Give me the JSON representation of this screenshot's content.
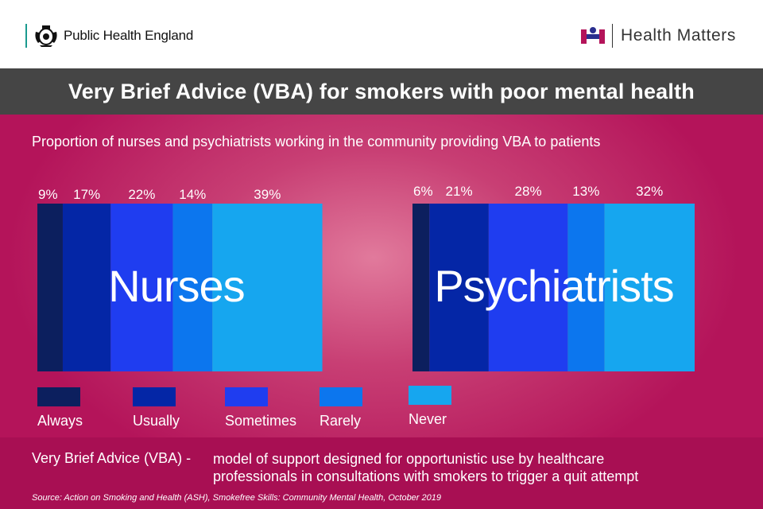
{
  "header": {
    "org": "Public Health England",
    "brand": "Health Matters"
  },
  "title": "Very Brief Advice (VBA) for smokers with poor mental health",
  "subtitle": "Proportion of nurses and psychiatrists working in the community providing VBA to patients",
  "colors": {
    "Always": "#0c1f5e",
    "Usually": "#0426a6",
    "Sometimes": "#1f3df0",
    "Rarely": "#0c76ee",
    "Never": "#16a6ef",
    "background": "#c0286a"
  },
  "chart_data": {
    "type": "bar",
    "orientation": "stacked-horizontal",
    "categories": [
      "Always",
      "Usually",
      "Sometimes",
      "Rarely",
      "Never"
    ],
    "groups": [
      {
        "name": "Nurses",
        "values": [
          9,
          17,
          22,
          14,
          39
        ],
        "labels": [
          "9%",
          "17%",
          "22%",
          "14%",
          "39%"
        ]
      },
      {
        "name": "Psychiatrists",
        "values": [
          6,
          21,
          28,
          13,
          32
        ],
        "labels": [
          "6%",
          "21%",
          "28%",
          "13%",
          "32%"
        ]
      }
    ],
    "legend": [
      "Always",
      "Usually",
      "Sometimes",
      "Rarely",
      "Never"
    ],
    "legend_position": "bottom-left",
    "grid": false
  },
  "footer": {
    "term": "Very Brief Advice (VBA) -",
    "definition_line1": "model of support designed for opportunistic use by healthcare",
    "definition_line2": "professionals in consultations with smokers to trigger a quit attempt",
    "source": "Source: Action on Smoking and Health (ASH), Smokefree Skills: Community Mental Health, October 2019"
  }
}
